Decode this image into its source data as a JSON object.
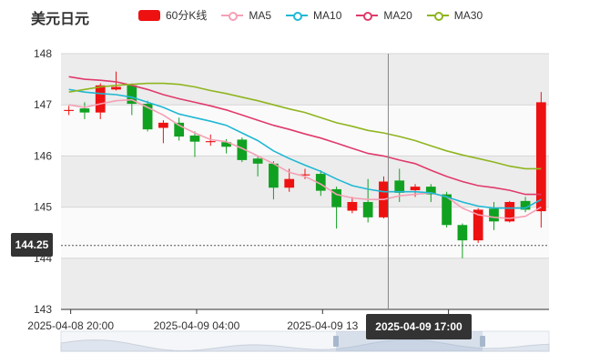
{
  "title": "美元日元",
  "legend": [
    {
      "label": "60分K线",
      "kind": "box",
      "color": "#ee1111"
    },
    {
      "label": "MA5",
      "kind": "line",
      "color": "#f5a0b5"
    },
    {
      "label": "MA10",
      "kind": "line",
      "color": "#1fb8d4"
    },
    {
      "label": "MA20",
      "kind": "line",
      "color": "#e03a6b"
    },
    {
      "label": "MA30",
      "kind": "line",
      "color": "#8fb51f"
    }
  ],
  "crosshair": {
    "price_label": "144.25",
    "time_label": "2025-04-09 17:00",
    "price": 144.25
  },
  "chart_data": {
    "type": "candlestick",
    "ylim": [
      143,
      148
    ],
    "yticks": [
      "143",
      "144",
      "145",
      "146",
      "147",
      "148"
    ],
    "xtick_labels": [
      "2025-04-08 20:00",
      "2025-04-09 04:00",
      "2025-04-09 13",
      "09 20:00"
    ],
    "up_color": "#ee1111",
    "down_color": "#11a121",
    "candles": [
      {
        "o": 146.88,
        "c": 146.9,
        "h": 146.98,
        "l": 146.8
      },
      {
        "o": 146.93,
        "c": 146.85,
        "h": 147.05,
        "l": 146.72
      },
      {
        "o": 146.85,
        "c": 147.38,
        "h": 147.42,
        "l": 146.72
      },
      {
        "o": 147.3,
        "c": 147.35,
        "h": 147.65,
        "l": 147.28
      },
      {
        "o": 147.38,
        "c": 147.02,
        "h": 147.42,
        "l": 146.8
      },
      {
        "o": 147.02,
        "c": 146.52,
        "h": 147.08,
        "l": 146.48
      },
      {
        "o": 146.55,
        "c": 146.65,
        "h": 146.7,
        "l": 146.25
      },
      {
        "o": 146.65,
        "c": 146.38,
        "h": 146.75,
        "l": 146.3
      },
      {
        "o": 146.4,
        "c": 146.28,
        "h": 146.48,
        "l": 145.98
      },
      {
        "o": 146.27,
        "c": 146.29,
        "h": 146.42,
        "l": 146.2
      },
      {
        "o": 146.27,
        "c": 146.18,
        "h": 146.33,
        "l": 146.05
      },
      {
        "o": 146.32,
        "c": 145.92,
        "h": 146.36,
        "l": 145.88
      },
      {
        "o": 145.95,
        "c": 145.85,
        "h": 146.0,
        "l": 145.6
      },
      {
        "o": 145.85,
        "c": 145.38,
        "h": 145.9,
        "l": 145.15
      },
      {
        "o": 145.38,
        "c": 145.55,
        "h": 145.75,
        "l": 145.3
      },
      {
        "o": 145.62,
        "c": 145.64,
        "h": 145.75,
        "l": 145.55
      },
      {
        "o": 145.65,
        "c": 145.32,
        "h": 145.72,
        "l": 145.22
      },
      {
        "o": 145.35,
        "c": 145.0,
        "h": 145.4,
        "l": 144.58
      },
      {
        "o": 144.93,
        "c": 145.1,
        "h": 145.2,
        "l": 144.88
      },
      {
        "o": 145.1,
        "c": 144.8,
        "h": 145.55,
        "l": 144.7
      },
      {
        "o": 144.8,
        "c": 145.5,
        "h": 145.6,
        "l": 144.78
      },
      {
        "o": 145.52,
        "c": 145.28,
        "h": 145.75,
        "l": 145.1
      },
      {
        "o": 145.33,
        "c": 145.4,
        "h": 145.45,
        "l": 145.2
      },
      {
        "o": 145.4,
        "c": 145.25,
        "h": 145.45,
        "l": 145.1
      },
      {
        "o": 145.25,
        "c": 144.65,
        "h": 145.3,
        "l": 144.6
      },
      {
        "o": 144.65,
        "c": 144.35,
        "h": 144.68,
        "l": 144.0
      },
      {
        "o": 144.35,
        "c": 144.95,
        "h": 144.98,
        "l": 144.3
      },
      {
        "o": 144.97,
        "c": 144.72,
        "h": 145.1,
        "l": 144.55
      },
      {
        "o": 144.72,
        "c": 145.1,
        "h": 145.12,
        "l": 144.7
      },
      {
        "o": 145.12,
        "c": 144.95,
        "h": 145.2,
        "l": 144.9
      },
      {
        "o": 144.92,
        "c": 147.05,
        "h": 147.25,
        "l": 144.6
      }
    ],
    "series": [
      {
        "name": "MA5",
        "color": "#f5a0b5",
        "values": [
          147.0,
          146.95,
          147.02,
          147.08,
          147.1,
          146.95,
          146.8,
          146.6,
          146.45,
          146.32,
          146.28,
          146.15,
          146.0,
          145.85,
          145.68,
          145.6,
          145.45,
          145.25,
          145.18,
          145.15,
          145.15,
          145.22,
          145.25,
          145.28,
          145.2,
          144.98,
          144.85,
          144.8,
          144.78,
          144.82,
          145.0
        ]
      },
      {
        "name": "MA10",
        "color": "#1fb8d4",
        "values": [
          147.3,
          147.25,
          147.22,
          147.2,
          147.15,
          147.05,
          146.95,
          146.82,
          146.75,
          146.68,
          146.6,
          146.45,
          146.3,
          146.1,
          145.95,
          145.82,
          145.7,
          145.55,
          145.42,
          145.35,
          145.3,
          145.3,
          145.3,
          145.28,
          145.2,
          145.1,
          145.02,
          144.98,
          144.98,
          144.98,
          145.15
        ]
      },
      {
        "name": "MA20",
        "color": "#e03a6b",
        "values": [
          147.55,
          147.5,
          147.48,
          147.45,
          147.38,
          147.3,
          147.2,
          147.12,
          147.05,
          146.98,
          146.9,
          146.8,
          146.7,
          146.6,
          146.52,
          146.43,
          146.35,
          146.25,
          146.15,
          146.05,
          146.0,
          145.92,
          145.85,
          145.72,
          145.6,
          145.5,
          145.42,
          145.38,
          145.33,
          145.25,
          145.25
        ]
      },
      {
        "name": "MA30",
        "color": "#8fb51f",
        "values": [
          147.25,
          147.3,
          147.35,
          147.38,
          147.4,
          147.42,
          147.42,
          147.4,
          147.35,
          147.28,
          147.22,
          147.15,
          147.08,
          147.0,
          146.92,
          146.85,
          146.75,
          146.65,
          146.58,
          146.5,
          146.45,
          146.38,
          146.3,
          146.2,
          146.1,
          146.02,
          145.95,
          145.88,
          145.8,
          145.75,
          145.75
        ]
      }
    ]
  }
}
